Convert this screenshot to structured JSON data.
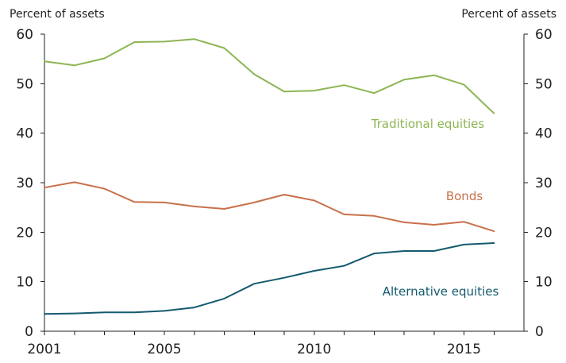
{
  "chart_data": {
    "type": "line",
    "title": "",
    "ylabel_left": "Percent of assets",
    "ylabel_right": "Percent of assets",
    "xlim": [
      2001,
      2017
    ],
    "ylim": [
      0,
      60
    ],
    "x_ticks": [
      2001,
      2005,
      2010,
      2015
    ],
    "y_ticks": [
      0,
      10,
      20,
      30,
      40,
      50,
      60
    ],
    "x": [
      2001,
      2002,
      2003,
      2004,
      2005,
      2006,
      2007,
      2008,
      2009,
      2010,
      2011,
      2012,
      2013,
      2014,
      2015,
      2016
    ],
    "grid": false,
    "series": [
      {
        "name": "Traditional equities",
        "color": "#8cb553",
        "values": [
          54.5,
          53.7,
          55.1,
          58.4,
          58.5,
          59.0,
          57.2,
          51.9,
          48.4,
          48.6,
          49.7,
          48.1,
          50.8,
          51.7,
          49.8,
          44.0
        ]
      },
      {
        "name": "Bonds",
        "color": "#c8704a",
        "values": [
          29.0,
          30.1,
          28.8,
          26.1,
          26.0,
          25.2,
          24.7,
          26.0,
          27.6,
          26.4,
          23.6,
          23.3,
          22.0,
          21.5,
          22.1,
          20.2
        ]
      },
      {
        "name": "Alternative equities",
        "color": "#145a6e",
        "values": [
          3.5,
          3.6,
          3.8,
          3.8,
          4.1,
          4.8,
          6.6,
          9.6,
          10.8,
          12.2,
          13.2,
          15.7,
          16.2,
          16.2,
          17.5,
          17.8
        ]
      }
    ]
  }
}
